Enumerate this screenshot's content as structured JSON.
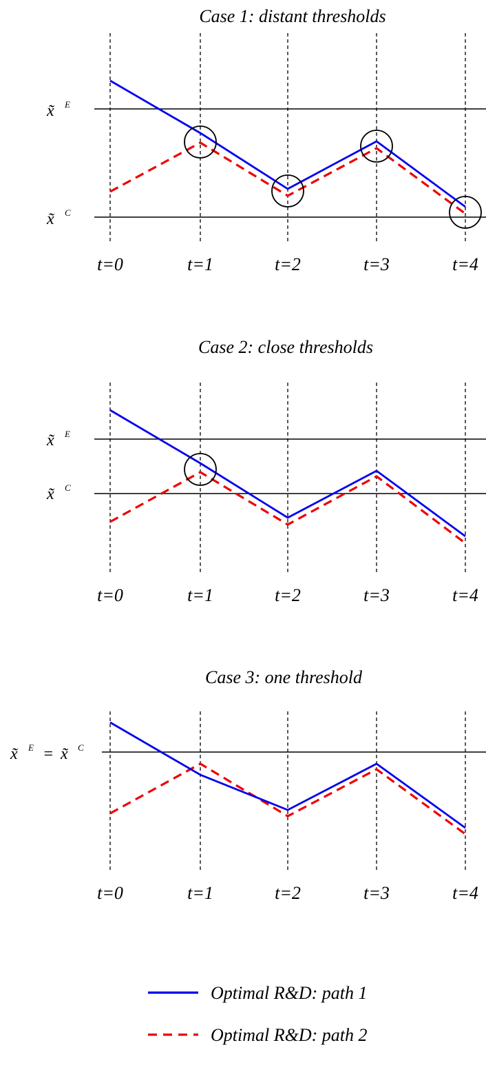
{
  "time_labels": [
    "t=0",
    "t=1",
    "t=2",
    "t=3",
    "t=4"
  ],
  "threshold_symbols": {
    "x_E": "x̃",
    "x_C": "x̃",
    "sup_E": "E",
    "sup_C": "C",
    "equals": "="
  },
  "colors": {
    "path1": "#0000ee",
    "path2": "#ee0000",
    "threshold": "#000000",
    "circle": "#000000"
  },
  "panels": [
    {
      "title": "Case 1: distant thresholds",
      "thresholds": [
        "x_E",
        "x_C"
      ],
      "combined_threshold_label": false,
      "circled_points": [
        1,
        2,
        3,
        4
      ]
    },
    {
      "title": "Case 2: close thresholds",
      "thresholds": [
        "x_E",
        "x_C"
      ],
      "combined_threshold_label": false,
      "circled_points": [
        1
      ]
    },
    {
      "title": "Case 3: one threshold",
      "thresholds": [
        "x_E=x_C"
      ],
      "combined_threshold_label": true,
      "circled_points": []
    }
  ],
  "legend": [
    {
      "label": "Optimal R&D: path 1",
      "style": "solid",
      "color": "#0000ee"
    },
    {
      "label": "Optimal R&D: path 2",
      "style": "dashed",
      "color": "#ee0000"
    }
  ]
}
